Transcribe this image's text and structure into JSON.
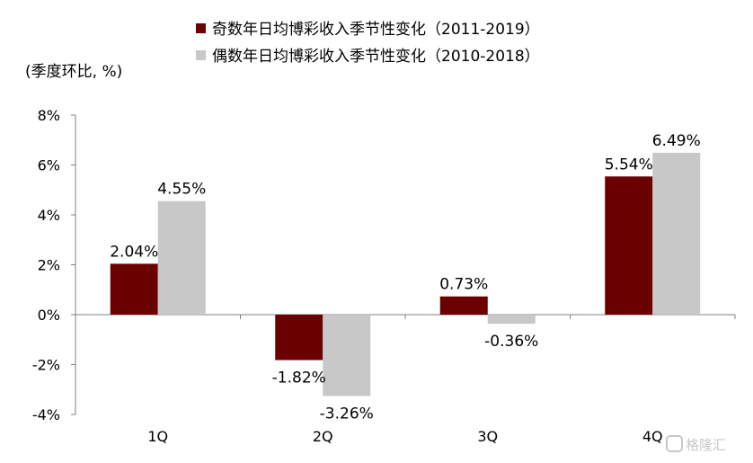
{
  "chart_data": {
    "type": "bar",
    "unit_label": "(季度环比, %)",
    "categories": [
      "1Q",
      "2Q",
      "3Q",
      "4Q"
    ],
    "series": [
      {
        "name": "奇数年日均博彩收入季节性变化（2011-2019）",
        "color": "#6b0000",
        "values": [
          2.04,
          -1.82,
          0.73,
          5.54
        ],
        "labels": [
          "2.04%",
          "-1.82%",
          "0.73%",
          "5.54%"
        ]
      },
      {
        "name": "偶数年日均博彩收入季节性变化（2010-2018）",
        "color": "#c8c8c8",
        "values": [
          4.55,
          -3.26,
          -0.36,
          6.49
        ],
        "labels": [
          "4.55%",
          "-3.26%",
          "-0.36%",
          "6.49%"
        ]
      }
    ],
    "ylim": [
      -4,
      8
    ],
    "yticks": [
      8,
      6,
      4,
      2,
      0,
      -2,
      -4
    ],
    "ytick_labels": [
      "8%",
      "6%",
      "4%",
      "2%",
      "0%",
      "-2%",
      "-4%"
    ],
    "grid": false,
    "legend_position": "top"
  },
  "watermark": "格隆汇"
}
